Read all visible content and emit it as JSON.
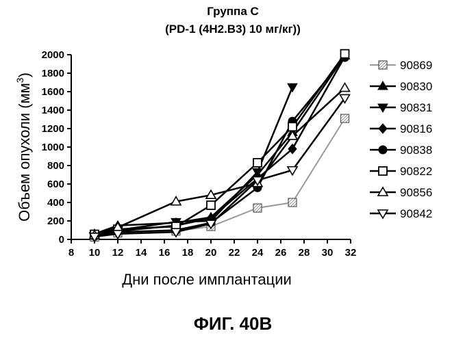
{
  "figure": {
    "caption": "ФИГ. 40В"
  },
  "chart_data": {
    "type": "line",
    "title": "Группа С",
    "subtitle": "(PD-1 (4H2.B3) 10 мг/кг))",
    "xlabel": "Дни после имплантации",
    "ylabel_main": "Объем опухоли (мм",
    "ylabel_sup": "3",
    "ylabel_close": ")",
    "xlim": [
      8,
      32
    ],
    "ylim": [
      0,
      2000
    ],
    "xticks": [
      8,
      10,
      12,
      14,
      16,
      18,
      20,
      22,
      24,
      26,
      28,
      30,
      32
    ],
    "yticks": [
      0,
      200,
      400,
      600,
      800,
      1000,
      1200,
      1400,
      1600,
      1800,
      2000
    ],
    "grid": false,
    "legend_position": "right",
    "series": [
      {
        "name": "90869",
        "marker": "hatched-square",
        "color": "#999999",
        "width": 2,
        "x": [
          10,
          12,
          17,
          20,
          24,
          27,
          31.5
        ],
        "y": [
          25,
          70,
          90,
          140,
          340,
          400,
          1310
        ]
      },
      {
        "name": "90830",
        "marker": "triangle-up-filled",
        "color": "#000000",
        "width": 2.5,
        "x": [
          10,
          12,
          17,
          20,
          24,
          27,
          31.5
        ],
        "y": [
          60,
          150,
          180,
          240,
          700,
          1160,
          1990
        ]
      },
      {
        "name": "90831",
        "marker": "triangle-down-filled",
        "color": "#000000",
        "width": 2.5,
        "x": [
          10,
          12,
          17,
          20,
          24,
          27
        ],
        "y": [
          40,
          100,
          190,
          200,
          730,
          1650
        ]
      },
      {
        "name": "90816",
        "marker": "diamond-filled",
        "color": "#000000",
        "width": 2.5,
        "x": [
          10,
          12,
          17,
          20,
          24,
          27,
          31.5
        ],
        "y": [
          50,
          90,
          150,
          230,
          660,
          980,
          1980
        ]
      },
      {
        "name": "90838",
        "marker": "circle-filled",
        "color": "#000000",
        "width": 2.5,
        "x": [
          10,
          12,
          17,
          20,
          24,
          27,
          31.5
        ],
        "y": [
          35,
          80,
          100,
          180,
          560,
          1280,
          1970
        ]
      },
      {
        "name": "90822",
        "marker": "square-open",
        "color": "#000000",
        "width": 2.5,
        "x": [
          10,
          12,
          17,
          20,
          24,
          27,
          31.5
        ],
        "y": [
          55,
          110,
          140,
          370,
          830,
          1220,
          2010
        ]
      },
      {
        "name": "90856",
        "marker": "triangle-up-open",
        "color": "#000000",
        "width": 2.5,
        "x": [
          10,
          12,
          17,
          20,
          24,
          27,
          31.5
        ],
        "y": [
          45,
          130,
          410,
          480,
          610,
          1120,
          1640
        ]
      },
      {
        "name": "90842",
        "marker": "triangle-down-open",
        "color": "#000000",
        "width": 2.5,
        "x": [
          10,
          12,
          17,
          20,
          24,
          27,
          31.5
        ],
        "y": [
          30,
          60,
          80,
          170,
          640,
          750,
          1530
        ]
      }
    ]
  }
}
